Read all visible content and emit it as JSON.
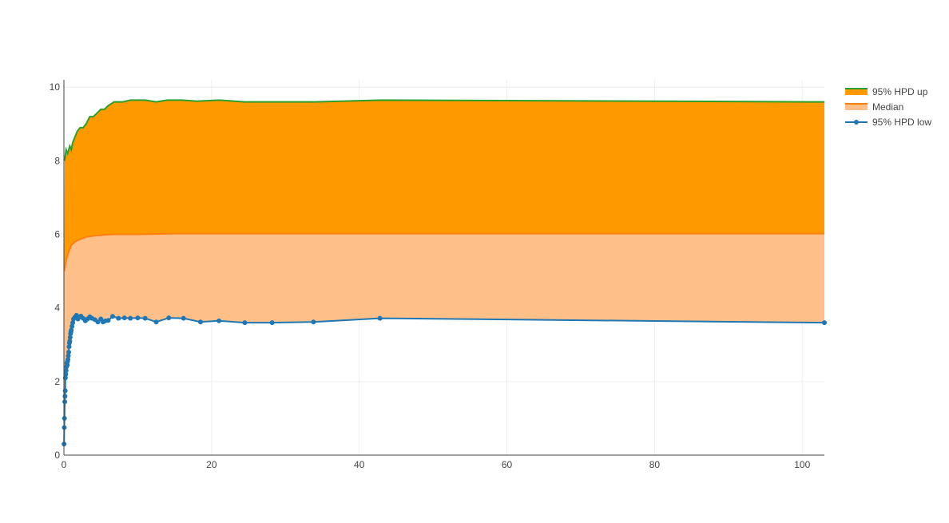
{
  "chart_data": {
    "type": "area",
    "xlim": [
      0,
      103
    ],
    "ylim": [
      0,
      10.2
    ],
    "x_ticks": [
      0,
      20,
      40,
      60,
      80,
      100
    ],
    "y_ticks": [
      0,
      2,
      4,
      6,
      8,
      10
    ],
    "grid": true,
    "legend_position": "top-right",
    "series": [
      {
        "name": "95% HPD up",
        "line_color": "#2ca02c",
        "fill": "tonexty",
        "fill_color": "#ff9900",
        "x": [
          0.1,
          0.3,
          0.5,
          0.8,
          1.0,
          1.2,
          1.4,
          1.8,
          2.2,
          2.6,
          3.0,
          3.5,
          4.0,
          4.5,
          5.0,
          5.5,
          6.0,
          6.8,
          8.0,
          9.0,
          11.0,
          12.5,
          14.0,
          16.0,
          18.0,
          21.0,
          24.5,
          28.0,
          34.0,
          43.0,
          103.0
        ],
        "y": [
          8.0,
          8.3,
          8.2,
          8.4,
          8.3,
          8.5,
          8.6,
          8.8,
          8.9,
          8.9,
          9.0,
          9.2,
          9.2,
          9.3,
          9.4,
          9.4,
          9.5,
          9.6,
          9.6,
          9.65,
          9.65,
          9.6,
          9.65,
          9.65,
          9.62,
          9.65,
          9.6,
          9.6,
          9.6,
          9.65,
          9.6
        ]
      },
      {
        "name": "Median",
        "line_color": "#ff7f0e",
        "fill": "tonexty",
        "fill_color": "#ffbf88",
        "x": [
          0.05,
          0.3,
          0.6,
          1.0,
          1.5,
          2.0,
          3.0,
          4.0,
          5.0,
          6.5,
          8.0,
          10.0,
          15.0,
          20.0,
          30.0,
          50.0,
          103.0
        ],
        "y": [
          5.0,
          5.3,
          5.5,
          5.7,
          5.8,
          5.85,
          5.93,
          5.96,
          5.98,
          6.0,
          6.0,
          6.0,
          6.02,
          6.02,
          6.02,
          6.02,
          6.02
        ]
      },
      {
        "name": "95% HPD low",
        "line_color": "#1f77b4",
        "fill": "none",
        "markers": true,
        "x": [
          0.02,
          0.05,
          0.08,
          0.12,
          0.15,
          0.18,
          0.2,
          0.25,
          0.3,
          0.35,
          0.4,
          0.45,
          0.5,
          0.55,
          0.6,
          0.65,
          0.7,
          0.75,
          0.8,
          0.85,
          0.9,
          0.95,
          1.0,
          1.1,
          1.2,
          1.3,
          1.5,
          1.7,
          1.9,
          2.1,
          2.3,
          2.6,
          2.9,
          3.2,
          3.5,
          3.8,
          4.2,
          4.6,
          5.0,
          5.3,
          5.6,
          6.0,
          6.6,
          7.4,
          8.2,
          9.0,
          10.0,
          11.0,
          12.5,
          14.2,
          16.2,
          18.5,
          21.0,
          24.5,
          28.2,
          33.8,
          42.8,
          103.0
        ],
        "y": [
          0.3,
          0.75,
          1.0,
          1.45,
          1.6,
          1.75,
          2.1,
          2.2,
          2.3,
          2.4,
          2.5,
          2.45,
          2.55,
          2.6,
          2.7,
          2.8,
          2.95,
          3.05,
          3.1,
          3.2,
          3.3,
          3.35,
          3.4,
          3.5,
          3.6,
          3.7,
          3.75,
          3.8,
          3.7,
          3.75,
          3.78,
          3.72,
          3.65,
          3.7,
          3.76,
          3.72,
          3.68,
          3.62,
          3.7,
          3.62,
          3.65,
          3.66,
          3.77,
          3.72,
          3.73,
          3.72,
          3.73,
          3.72,
          3.62,
          3.73,
          3.72,
          3.62,
          3.65,
          3.6,
          3.6,
          3.62,
          3.72,
          3.6
        ]
      }
    ]
  }
}
